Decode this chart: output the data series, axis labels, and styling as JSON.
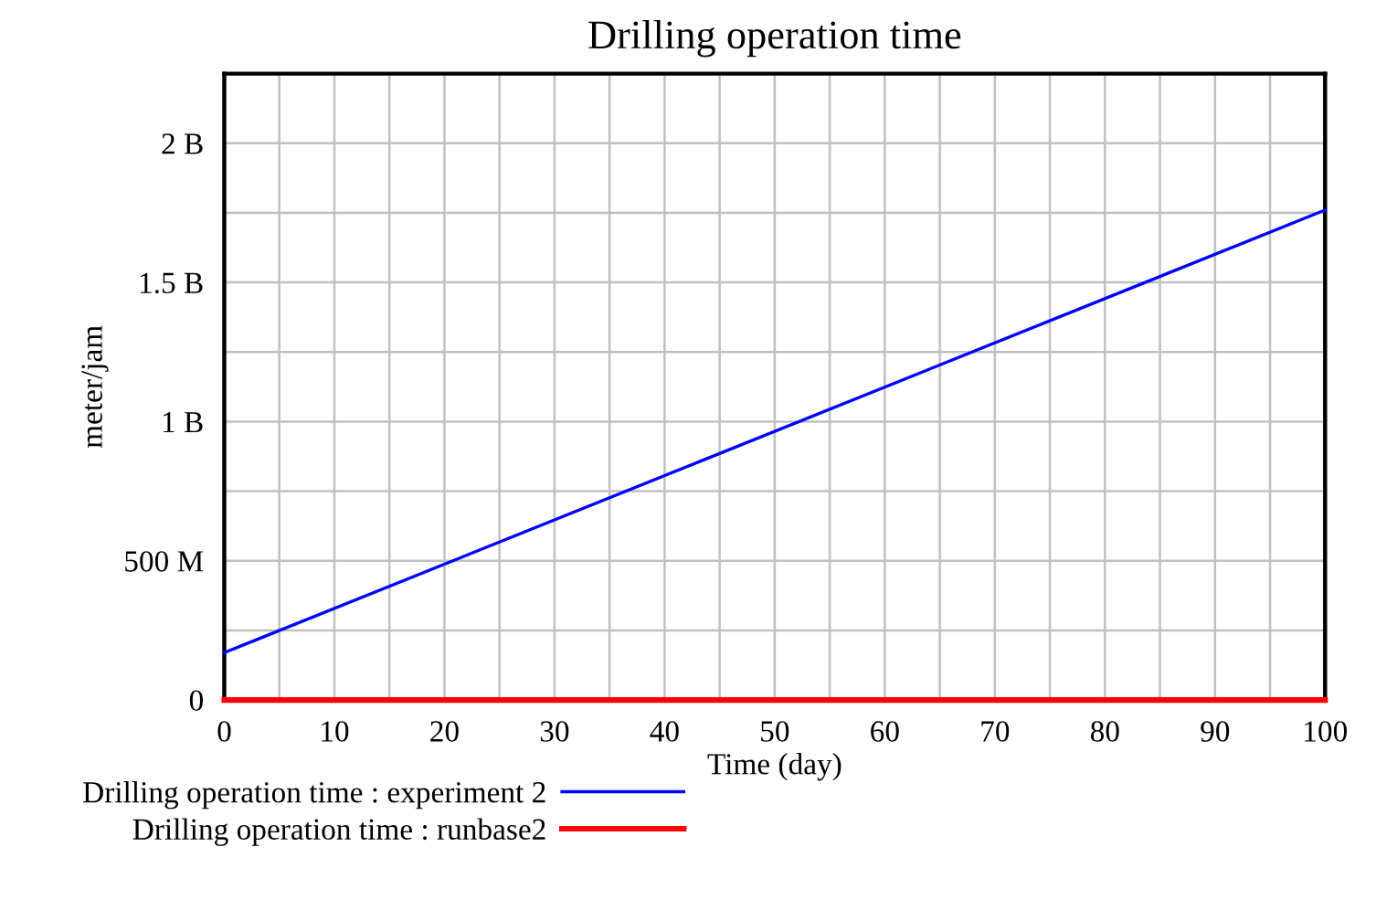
{
  "chart_data": {
    "type": "line",
    "title": "Drilling operation time",
    "xlabel": "Time (day)",
    "ylabel": "meter/jam",
    "x": [
      0,
      100
    ],
    "series": [
      {
        "name": "Drilling operation time : experiment 2",
        "color": "#0000ff",
        "values": [
          170000000,
          1760000000
        ]
      },
      {
        "name": "Drilling operation time : runbase2",
        "color": "#ff0000",
        "values": [
          0,
          0
        ]
      }
    ],
    "xlim": [
      0,
      100
    ],
    "ylim": [
      0,
      2250000000
    ],
    "xticks": [
      0,
      {
        "value": 5,
        "label": null
      },
      10,
      {
        "value": 15,
        "label": null
      },
      20,
      {
        "value": 25,
        "label": null
      },
      30,
      {
        "value": 35,
        "label": null
      },
      40,
      {
        "value": 45,
        "label": null
      },
      50,
      {
        "value": 55,
        "label": null
      },
      60,
      {
        "value": 65,
        "label": null
      },
      70,
      {
        "value": 75,
        "label": null
      },
      80,
      {
        "value": 85,
        "label": null
      },
      90,
      {
        "value": 95,
        "label": null
      },
      100
    ],
    "yticks": [
      {
        "value": 0,
        "label": "0"
      },
      {
        "value": 250000000,
        "label": null
      },
      {
        "value": 500000000,
        "label": "500 M"
      },
      {
        "value": 750000000,
        "label": null
      },
      {
        "value": 1000000000,
        "label": "1 B"
      },
      {
        "value": 1250000000,
        "label": null
      },
      {
        "value": 1500000000,
        "label": "1.5 B"
      },
      {
        "value": 1750000000,
        "label": null
      },
      {
        "value": 2000000000,
        "label": "2 B"
      }
    ],
    "grid": true,
    "legend": "bottom",
    "marker": "none",
    "line_style": "solid"
  }
}
